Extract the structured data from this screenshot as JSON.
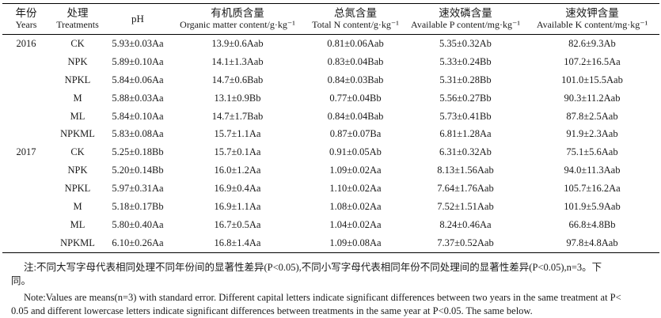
{
  "table": {
    "headers": [
      {
        "cn": "年份",
        "en": "Years"
      },
      {
        "cn": "处理",
        "en": "Treatments"
      },
      {
        "cn": "",
        "en": "pH"
      },
      {
        "cn": "有机质含量",
        "en": "Organic matter content/g·kg⁻¹"
      },
      {
        "cn": "总氮含量",
        "en": "Total N content/g·kg⁻¹"
      },
      {
        "cn": "速效磷含量",
        "en": "Available P content/mg·kg⁻¹"
      },
      {
        "cn": "速效钾含量",
        "en": "Available K content/mg·kg⁻¹"
      }
    ],
    "rows": [
      {
        "year": "2016",
        "treatment": "CK",
        "ph": "5.93±0.03Aa",
        "om": "13.9±0.6Aab",
        "tn": "0.81±0.06Aab",
        "ap": "5.35±0.32Ab",
        "ak": "82.6±9.3Ab"
      },
      {
        "year": "",
        "treatment": "NPK",
        "ph": "5.89±0.10Aa",
        "om": "14.1±1.3Aab",
        "tn": "0.83±0.04Bab",
        "ap": "5.33±0.24Bb",
        "ak": "107.2±16.5Aa"
      },
      {
        "year": "",
        "treatment": "NPKL",
        "ph": "5.84±0.06Aa",
        "om": "14.7±0.6Bab",
        "tn": "0.84±0.03Bab",
        "ap": "5.31±0.28Bb",
        "ak": "101.0±15.5Aab"
      },
      {
        "year": "",
        "treatment": "M",
        "ph": "5.88±0.03Aa",
        "om": "13.1±0.9Bb",
        "tn": "0.77±0.04Bb",
        "ap": "5.56±0.27Bb",
        "ak": "90.3±11.2Aab"
      },
      {
        "year": "",
        "treatment": "ML",
        "ph": "5.84±0.10Aa",
        "om": "14.7±1.7Bab",
        "tn": "0.84±0.04Bab",
        "ap": "5.73±0.41Bb",
        "ak": "87.8±2.5Aab"
      },
      {
        "year": "",
        "treatment": "NPKML",
        "ph": "5.83±0.08Aa",
        "om": "15.7±1.1Aa",
        "tn": "0.87±0.07Ba",
        "ap": "6.81±1.28Aa",
        "ak": "91.9±2.3Aab"
      },
      {
        "year": "2017",
        "treatment": "CK",
        "ph": "5.25±0.18Bb",
        "om": "15.7±0.1Aa",
        "tn": "0.91±0.05Ab",
        "ap": "6.31±0.32Ab",
        "ak": "75.1±5.6Aab"
      },
      {
        "year": "",
        "treatment": "NPK",
        "ph": "5.20±0.14Bb",
        "om": "16.0±1.2Aa",
        "tn": "1.09±0.02Aa",
        "ap": "8.13±1.56Aab",
        "ak": "94.0±11.3Aab"
      },
      {
        "year": "",
        "treatment": "NPKL",
        "ph": "5.97±0.31Aa",
        "om": "16.9±0.4Aa",
        "tn": "1.10±0.02Aa",
        "ap": "7.64±1.76Aab",
        "ak": "105.7±16.2Aa"
      },
      {
        "year": "",
        "treatment": "M",
        "ph": "5.18±0.17Bb",
        "om": "16.9±1.1Aa",
        "tn": "1.08±0.02Aa",
        "ap": "7.52±1.51Aab",
        "ak": "101.9±5.9Aab"
      },
      {
        "year": "",
        "treatment": "ML",
        "ph": "5.80±0.40Aa",
        "om": "16.7±0.5Aa",
        "tn": "1.04±0.02Aa",
        "ap": "8.24±0.46Aa",
        "ak": "66.8±4.8Bb"
      },
      {
        "year": "",
        "treatment": "NPKML",
        "ph": "6.10±0.26Aa",
        "om": "16.8±1.4Aa",
        "tn": "1.09±0.08Aa",
        "ap": "7.37±0.52Aab",
        "ak": "97.8±4.8Aab"
      }
    ]
  },
  "notes": {
    "cn_line1": "注:不同大写字母代表相同处理不同年份间的显著性差异(P<0.05),不同小写字母代表相同年份不同处理间的显著性差异(P<0.05),n=3。下",
    "cn_line2": "同。",
    "en_line1": "Note:Values are means(n=3) with standard error. Different capital letters indicate significant differences between two years in the same treatment at P<",
    "en_line2": "0.05 and different lowercase letters indicate significant differences between treatments in the same year at P<0.05. The same below."
  }
}
